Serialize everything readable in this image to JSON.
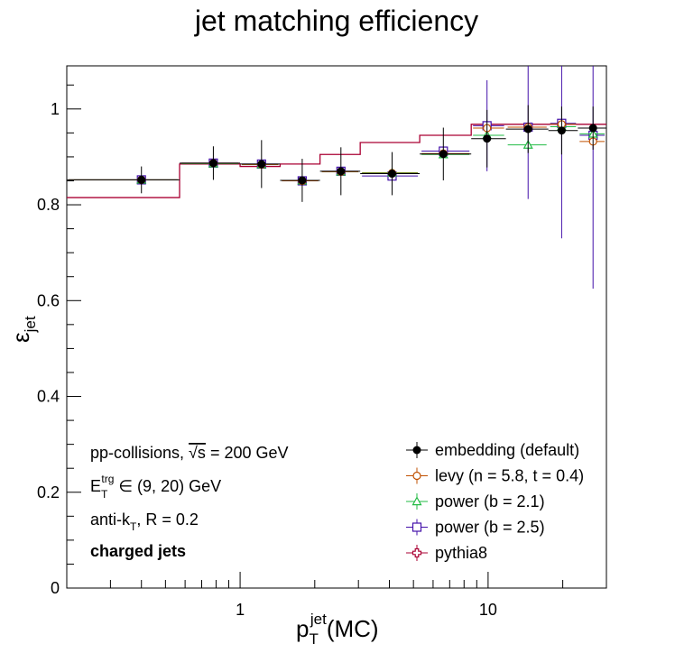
{
  "chart_data": {
    "type": "line",
    "title": "jet matching efficiency",
    "xlabel": {
      "main": "p",
      "sub": "T",
      "sup": "jet",
      "suffix": "(MC)"
    },
    "ylabel": {
      "main": "ε",
      "sub": "jet"
    },
    "xscale": "log",
    "xlim": [
      0.2,
      30
    ],
    "ylim": [
      0,
      1.09
    ],
    "x_ticks": [
      1,
      10
    ],
    "x_tick_labels": [
      "1",
      "10"
    ],
    "y_ticks": [
      0,
      0.2,
      0.4,
      0.6,
      0.8,
      1
    ],
    "y_tick_labels": [
      "0",
      "0.2",
      "0.4",
      "0.6",
      "0.8",
      "1"
    ],
    "grid": false,
    "legend_position": "bottom-right",
    "bin_edges": [
      0.2,
      0.57,
      1.0,
      1.45,
      2.1,
      3.05,
      5.3,
      8.55,
      11.8,
      17.5,
      23,
      30
    ],
    "pythia8_curve": [
      0.815,
      0.885,
      0.88,
      0.885,
      0.905,
      0.93,
      0.945,
      0.968,
      0.968,
      0.968,
      0.968
    ],
    "series": [
      {
        "name": "embedding (default)",
        "color": "#000000",
        "marker": "filled-circle",
        "x": [
          0.4,
          0.78,
          1.22,
          1.78,
          2.55,
          4.1,
          6.6,
          9.9,
          14.5,
          19.8,
          26.5
        ],
        "y": [
          0.852,
          0.887,
          0.885,
          0.851,
          0.87,
          0.865,
          0.906,
          0.938,
          0.958,
          0.955,
          0.96
        ],
        "err": [
          0.028,
          0.035,
          0.05,
          0.045,
          0.05,
          0.045,
          0.055,
          0.06,
          0.05,
          0.05,
          0.045
        ]
      },
      {
        "name": "levy (n = 5.8, t = 0.4)",
        "color": "#c05000",
        "marker": "open-circle",
        "x": [
          0.4,
          0.78,
          1.22,
          1.78,
          2.55,
          4.1,
          6.6,
          9.9,
          14.5,
          19.8,
          26.5
        ],
        "y": [
          0.852,
          0.887,
          0.884,
          0.85,
          0.869,
          0.866,
          0.907,
          0.96,
          0.962,
          0.968,
          0.932
        ],
        "err": [
          0,
          0,
          0,
          0,
          0,
          0,
          0,
          0,
          0,
          0,
          0
        ]
      },
      {
        "name": "power (b = 2.1)",
        "color": "#22bb44",
        "marker": "open-triangle",
        "x": [
          0.4,
          0.78,
          1.22,
          1.78,
          2.55,
          4.1,
          6.6,
          9.9,
          14.5,
          19.8,
          26.5
        ],
        "y": [
          0.852,
          0.886,
          0.884,
          0.85,
          0.869,
          0.867,
          0.905,
          0.945,
          0.925,
          0.963,
          0.948
        ],
        "err": [
          0,
          0,
          0,
          0,
          0,
          0,
          0,
          0,
          0,
          0,
          0
        ]
      },
      {
        "name": "power (b = 2.5)",
        "color": "#4411aa",
        "marker": "open-square",
        "x": [
          0.4,
          0.78,
          1.22,
          1.78,
          2.55,
          4.1,
          6.6,
          9.9,
          14.5,
          19.8,
          26.5
        ],
        "y": [
          0.852,
          0.887,
          0.885,
          0.85,
          0.87,
          0.86,
          0.912,
          0.965,
          0.962,
          0.97,
          0.945
        ],
        "err": [
          0,
          0,
          0,
          0,
          0,
          0,
          0,
          0.095,
          0.15,
          0.24,
          0.32
        ]
      },
      {
        "name": "pythia8",
        "color": "#aa0033",
        "marker": "open-cross",
        "x": [],
        "y": [],
        "err": []
      }
    ],
    "annotations": {
      "line1_prefix": "pp-collisions, ",
      "line1_sqrt": "√s",
      "line1_suffix": " = 200 GeV",
      "line2_main": "E",
      "line2_sub": "T",
      "line2_sup": "trg",
      "line2_suffix": " ∈ (9, 20) GeV",
      "line3_prefix": "anti-k",
      "line3_sub": "T",
      "line3_suffix": ", R = 0.2",
      "line4": "charged jets"
    }
  }
}
